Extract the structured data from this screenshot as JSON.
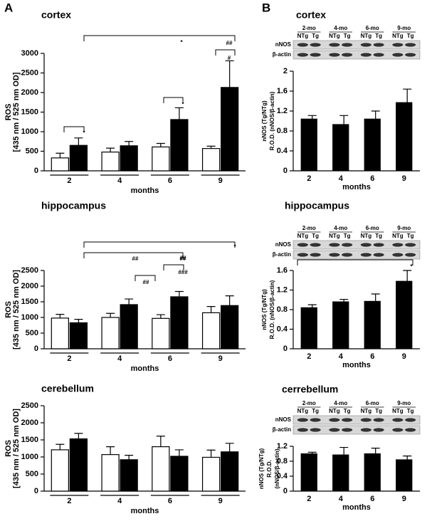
{
  "panel_labels": [
    "A",
    "B"
  ],
  "chart_data": [
    {
      "type": "grouped-bar",
      "title": "cortex",
      "categories": [
        "2",
        "4",
        "6",
        "9"
      ],
      "xlabel": "months",
      "ylabel": [
        "ROS",
        "[435 nm / 525 nm OD]"
      ],
      "ylim": [
        0,
        3000
      ],
      "yticks": [
        0,
        500,
        1000,
        1500,
        2000,
        2500,
        3000
      ],
      "series": [
        {
          "color": "#ffffff",
          "values": [
            330,
            480,
            610,
            570
          ],
          "errors": [
            120,
            100,
            90,
            60
          ]
        },
        {
          "color": "#000000",
          "values": [
            650,
            640,
            1310,
            2130
          ],
          "errors": [
            190,
            110,
            300,
            680
          ]
        }
      ],
      "annotations": [
        "*",
        "*",
        "##",
        "#",
        "*"
      ]
    },
    {
      "type": "grouped-bar",
      "title": "hippocampus",
      "categories": [
        "2",
        "4",
        "6",
        "9"
      ],
      "xlabel": "months",
      "ylabel": [
        "ROS",
        "[435 nm / 525 nm OD]"
      ],
      "ylim": [
        0,
        2500
      ],
      "yticks": [
        0,
        500,
        1000,
        1500,
        2000,
        2500
      ],
      "series": [
        {
          "color": "#ffffff",
          "values": [
            980,
            1000,
            970,
            1150
          ],
          "errors": [
            120,
            130,
            120,
            200
          ]
        },
        {
          "color": "#000000",
          "values": [
            830,
            1410,
            1660,
            1380
          ],
          "errors": [
            110,
            180,
            170,
            310
          ]
        }
      ],
      "annotations": [
        "##",
        "##",
        "*",
        "##",
        "##",
        "###"
      ]
    },
    {
      "type": "grouped-bar",
      "title": "cerebellum",
      "categories": [
        "2",
        "4",
        "6",
        "9"
      ],
      "xlabel": "months",
      "ylabel": [
        "ROS",
        "[435 nm / 525 nm OD]"
      ],
      "ylim": [
        0,
        2500
      ],
      "yticks": [
        0,
        500,
        1000,
        1500,
        2000,
        2500
      ],
      "series": [
        {
          "color": "#ffffff",
          "values": [
            1210,
            1070,
            1300,
            990
          ],
          "errors": [
            160,
            230,
            310,
            210
          ]
        },
        {
          "color": "#000000",
          "values": [
            1530,
            920,
            1020,
            1150
          ],
          "errors": [
            160,
            130,
            190,
            250
          ]
        }
      ],
      "annotations": []
    },
    {
      "type": "bar",
      "title": "cortex",
      "categories": [
        "2",
        "4",
        "6",
        "9"
      ],
      "xlabel": "months",
      "ylabel": [
        "nNOS (Tg/NTg)",
        "R.O.D. (nNOS/β-actin)"
      ],
      "ylim": [
        0,
        2
      ],
      "yticks": [
        0,
        0.4,
        0.8,
        1.2,
        1.6,
        2
      ],
      "color": "#000000",
      "values": [
        1.04,
        0.93,
        1.04,
        1.37
      ],
      "errors": [
        0.07,
        0.18,
        0.16,
        0.27
      ],
      "blot": {
        "groups": [
          "2-mo",
          "4-mo",
          "6-mo",
          "9-mo"
        ],
        "lanes": [
          "NTg",
          "Tg"
        ],
        "rows": [
          "nNOS",
          "β-actin"
        ]
      },
      "annotations": []
    },
    {
      "type": "bar",
      "title": "hippocampus",
      "categories": [
        "2",
        "4",
        "6",
        "9"
      ],
      "xlabel": "months",
      "ylabel": [
        "nNOS (Tg/NTg)",
        "R.O.D. (nNOS/β-actin)"
      ],
      "ylim": [
        0,
        1.6
      ],
      "yticks": [
        0,
        0.4,
        0.8,
        1.2,
        1.6
      ],
      "color": "#000000",
      "values": [
        0.84,
        0.96,
        0.97,
        1.38
      ],
      "errors": [
        0.06,
        0.05,
        0.15,
        0.22
      ],
      "blot": {
        "groups": [
          "2-mo",
          "4-mo",
          "6-mo",
          "9-mo"
        ],
        "lanes": [
          "NTg",
          "Tg"
        ],
        "rows": [
          "nNOS",
          "β-actin"
        ]
      },
      "annotations": [
        "*"
      ]
    },
    {
      "type": "bar",
      "title": "cerrebellum",
      "categories": [
        "2",
        "4",
        "6",
        "9"
      ],
      "xlabel": "months",
      "ylabel": [
        "nNOS (Tg/NTg)",
        "R.O.D.",
        "(nNOS/β-actin)"
      ],
      "ylim": [
        0,
        1.2
      ],
      "yticks": [
        0,
        0.4,
        0.8,
        1.2
      ],
      "color": "#000000",
      "values": [
        1.0,
        0.97,
        1.0,
        0.84
      ],
      "errors": [
        0.04,
        0.2,
        0.15,
        0.1
      ],
      "blot": {
        "groups": [
          "2-mo",
          "4-mo",
          "6-mo",
          "9-mo"
        ],
        "lanes": [
          "NTg",
          "Tg"
        ],
        "rows": [
          "nNOS",
          "β-actin"
        ]
      },
      "annotations": []
    }
  ]
}
